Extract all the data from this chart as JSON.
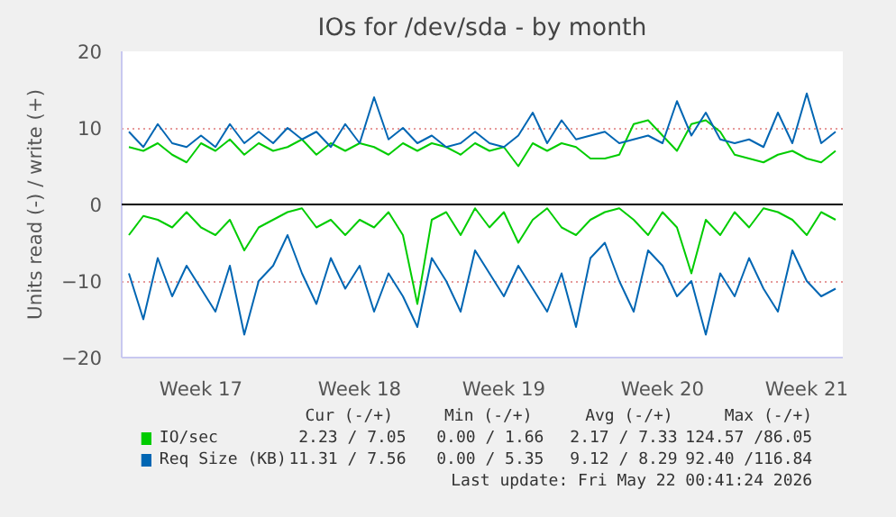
{
  "chart_data": {
    "type": "line",
    "title": "IOs for /dev/sda - by month",
    "ylabel": "Units read (-) / write (+)",
    "categories": [
      null,
      null,
      null,
      null,
      null,
      "Week 17",
      null,
      null,
      null,
      null,
      null,
      null,
      null,
      null,
      null,
      null,
      "Week 18",
      null,
      null,
      null,
      null,
      null,
      null,
      null,
      null,
      null,
      "Week 19",
      null,
      null,
      null,
      null,
      null,
      null,
      null,
      null,
      null,
      null,
      "Week 20",
      null,
      null,
      null,
      null,
      null,
      null,
      null,
      null,
      null,
      "Week 21",
      null,
      null
    ],
    "ylim": [
      -20,
      20
    ],
    "yticks": [
      -20,
      -10,
      0,
      10,
      20
    ],
    "grid": "y",
    "legend": "bottom",
    "ref_lines": [
      {
        "axis": "y",
        "value": 0,
        "color": "#000000"
      }
    ],
    "series": [
      {
        "color": "#00cc00",
        "values": [
          -4,
          -1.5,
          -2,
          -3,
          -1,
          -3,
          -4,
          -2,
          -6,
          -3,
          -2,
          -1,
          -0.5,
          -3,
          -2,
          -4,
          -2,
          -3,
          -1,
          -4,
          -13,
          -2,
          -1,
          -4,
          -0.5,
          -3,
          -1,
          -5,
          -2,
          -0.5,
          -3,
          -4,
          -2,
          -1,
          -0.5,
          -2,
          -4,
          -1,
          -3,
          -9,
          -2,
          -4,
          -1,
          -3,
          -0.5,
          -1,
          -2,
          -4,
          -1,
          -2
        ]
      },
      {
        "name": "IO/sec",
        "color": "#00cc00",
        "values": [
          7.5,
          7,
          8,
          6.5,
          5.5,
          8,
          7,
          8.5,
          6.5,
          8,
          7,
          7.5,
          8.5,
          6.5,
          8,
          7,
          8,
          7.5,
          6.5,
          8,
          7,
          8,
          7.5,
          6.5,
          8,
          7,
          7.5,
          5,
          8,
          7,
          8,
          7.5,
          6,
          6,
          6.5,
          10.5,
          11,
          9,
          7,
          10.5,
          11,
          9.5,
          6.5,
          6,
          5.5,
          6.5,
          7,
          6,
          5.5,
          7
        ]
      },
      {
        "color": "#0066b3",
        "values": [
          -9,
          -15,
          -7,
          -12,
          -8,
          -11,
          -14,
          -8,
          -17,
          -10,
          -8,
          -4,
          -9,
          -13,
          -7,
          -11,
          -8,
          -14,
          -9,
          -12,
          -16,
          -7,
          -10,
          -14,
          -6,
          -9,
          -12,
          -8,
          -11,
          -14,
          -9,
          -16,
          -7,
          -5,
          -10,
          -14,
          -6,
          -8,
          -12,
          -10,
          -17,
          -9,
          -12,
          -7,
          -11,
          -14,
          -6,
          -10,
          -12,
          -11
        ]
      },
      {
        "name": "Req Size (KB)",
        "color": "#0066b3",
        "values": [
          9.5,
          7.5,
          10.5,
          8,
          7.5,
          9,
          7.5,
          10.5,
          8,
          9.5,
          8,
          10,
          8.5,
          9.5,
          7.5,
          10.5,
          8,
          14,
          8.5,
          10,
          8,
          9,
          7.5,
          8,
          9.5,
          8,
          7.5,
          9,
          12,
          8,
          11,
          8.5,
          9,
          9.5,
          8,
          8.5,
          9,
          8,
          13.5,
          9,
          12,
          8.5,
          8,
          8.5,
          7.5,
          12,
          8,
          14.5,
          8,
          9.5
        ]
      }
    ],
    "annotations": [
      "Cur (-/+)",
      "Min (-/+)",
      "Avg (-/+)",
      "Max (-/+)",
      "2.23 / 7.05",
      "0.00 / 1.66",
      "2.17 / 7.33",
      "124.57 /86.05",
      "11.31 / 7.56",
      "0.00 / 5.35",
      "9.12 / 8.29",
      "92.40 /116.84",
      "Last update: Fri May 22 00:41:24 2026"
    ]
  }
}
